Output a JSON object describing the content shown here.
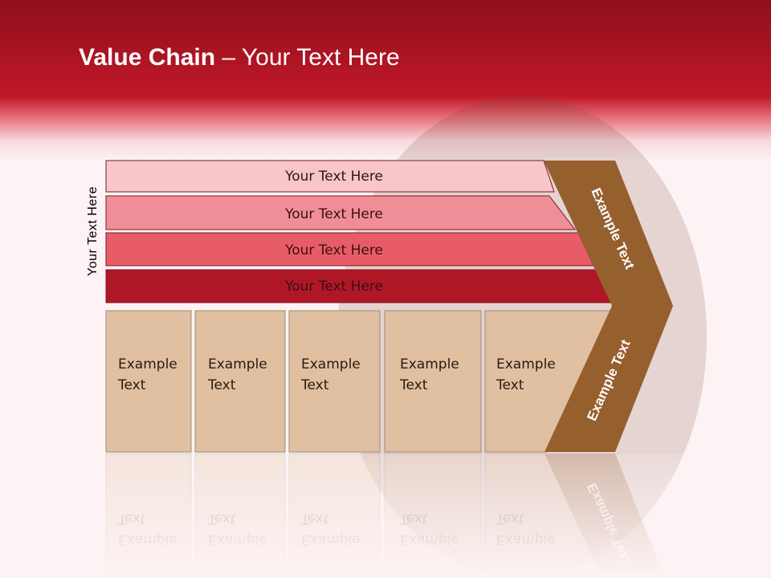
{
  "title": {
    "bold": "Value Chain",
    "rest": " – Your Text Here"
  },
  "side_label": "Your Text Here",
  "bars": [
    {
      "label": "Your Text Here",
      "color": "#f7c5ca"
    },
    {
      "label": "Your Text Here",
      "color": "#f08e97"
    },
    {
      "label": "Your Text Here",
      "color": "#e85c68"
    },
    {
      "label": "Your Text Here",
      "color": "#b01726"
    }
  ],
  "boxes": [
    {
      "line1": "Example",
      "line2": "Text"
    },
    {
      "line1": "Example",
      "line2": "Text"
    },
    {
      "line1": "Example",
      "line2": "Text"
    },
    {
      "line1": "Example",
      "line2": "Text"
    },
    {
      "line1": "Example",
      "line2": "Text"
    }
  ],
  "chevron": {
    "top_label": "Example Text",
    "bottom_label": "Example Text",
    "color": "#965f2e"
  },
  "colors": {
    "header": "#c01828",
    "box": "#e0c0a0"
  }
}
